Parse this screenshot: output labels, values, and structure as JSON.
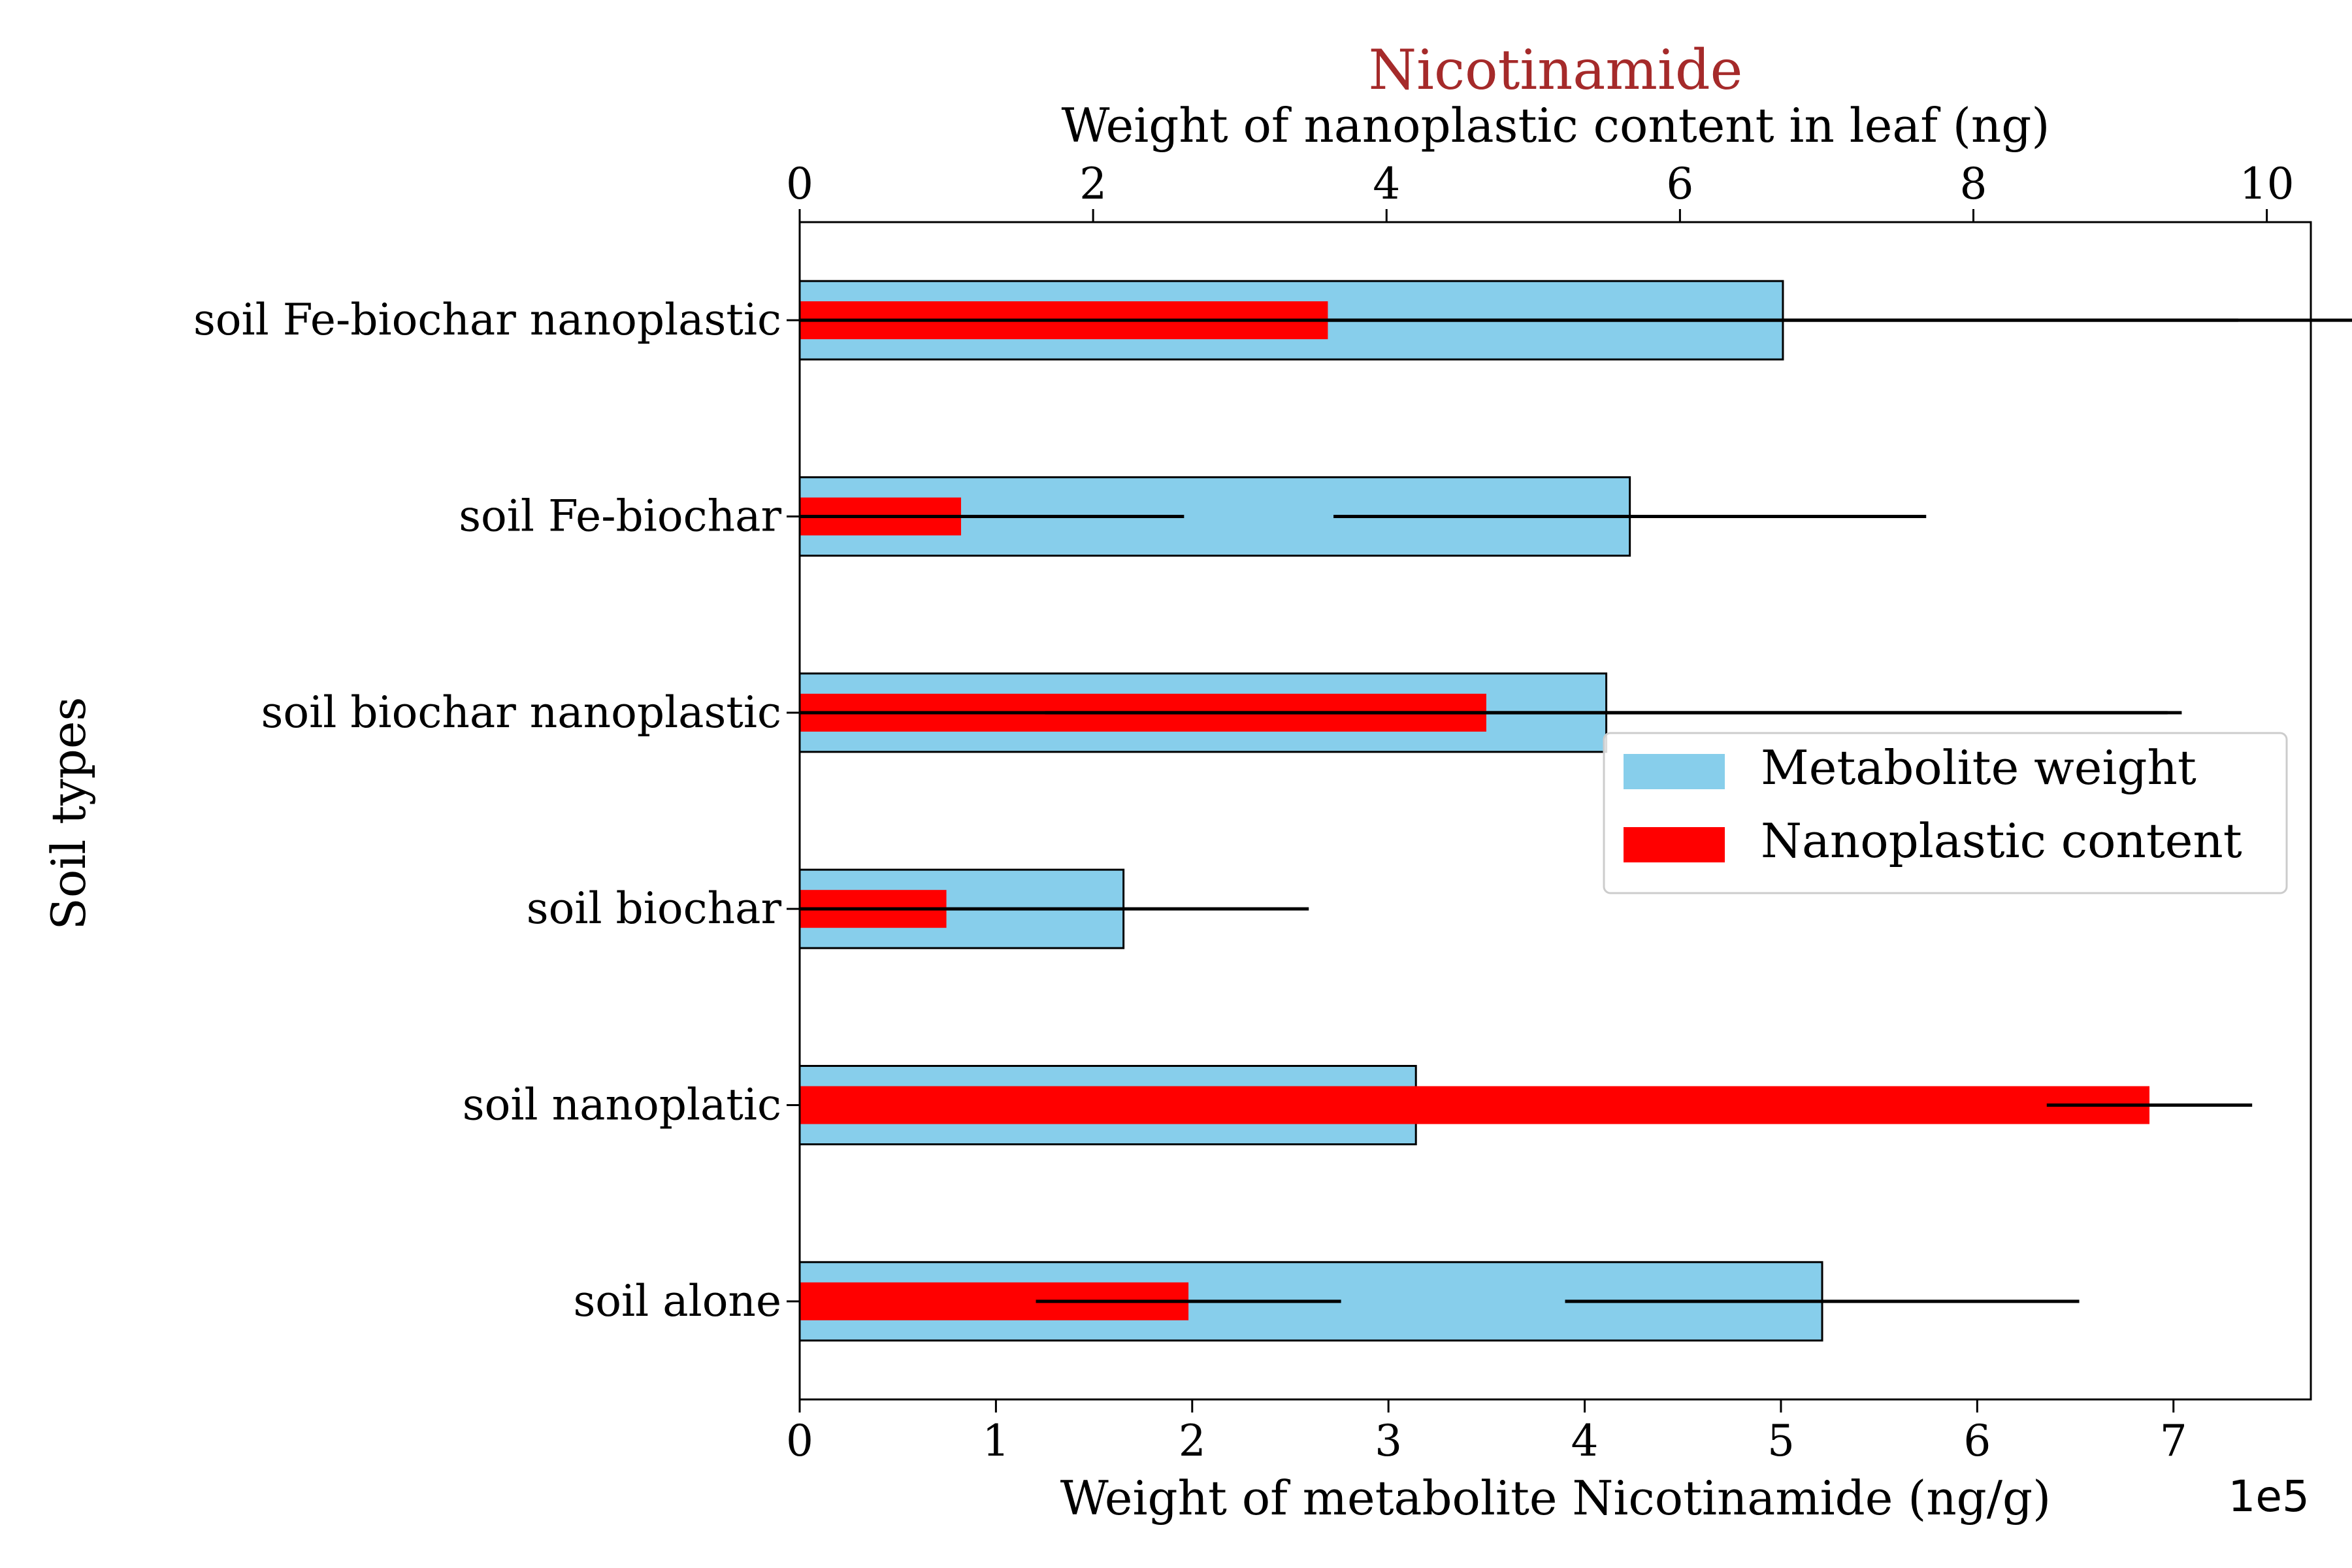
{
  "chart_data": {
    "type": "bar",
    "orientation": "horizontal",
    "title": "Nicotinamide",
    "title_color": "#a52a2a",
    "ylabel": "Soil types",
    "xlabel": "Weight of metabolite Nicotinamide (ng/g)",
    "x_offset_text": "1e5",
    "x2label": "Weight of nanoplastic content in leaf (ng)",
    "categories": [
      "soil Fe-biochar nanoplastic",
      "soil Fe-biochar",
      "soil biochar nanoplastic",
      "soil biochar",
      "soil nanoplatic",
      "soil alone"
    ],
    "xlim": [
      0,
      7.7
    ],
    "x_ticks": [
      0,
      1,
      2,
      3,
      4,
      5,
      6,
      7
    ],
    "x2lim": [
      0,
      10.3
    ],
    "x2_ticks": [
      0,
      2,
      4,
      6,
      8,
      10
    ],
    "grid": false,
    "legend_position": "center-right",
    "series": [
      {
        "name": "Metabolite weight",
        "axis": "bottom",
        "color": "#87ceeb",
        "edgecolor": "#000000",
        "values": [
          5.01,
          4.23,
          4.11,
          1.65,
          3.14,
          5.21
        ],
        "errors": [
          2.32,
          1.51,
          2.86,
          0,
          0,
          1.31
        ]
      },
      {
        "name": "Nanoplastic content",
        "axis": "top",
        "color": "#ff0000",
        "values": [
          3.6,
          1.1,
          4.68,
          1.0,
          9.2,
          2.65
        ],
        "errors": [
          8.8,
          1.52,
          4.74,
          2.47,
          0.7,
          1.04
        ]
      }
    ]
  }
}
